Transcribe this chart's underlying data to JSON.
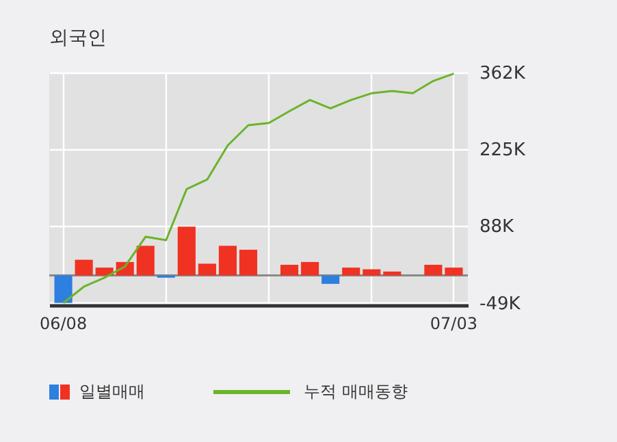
{
  "chart_data": {
    "type": "bar",
    "title": "외국인",
    "categories": [
      "06/08",
      null,
      null,
      null,
      null,
      null,
      null,
      null,
      null,
      null,
      null,
      null,
      null,
      null,
      null,
      null,
      null,
      null,
      null,
      "07/03"
    ],
    "series": [
      {
        "name": "일별매매",
        "colors": [
          "#2d7fe0",
          "#f03223",
          "#f03223",
          "#f03223",
          "#f03223",
          "#2d7fe0",
          "#f03223",
          "#f03223",
          "#f03223",
          "#f03223",
          "#f03223",
          "#f03223",
          "#f03223",
          "#2d7fe0",
          "#f03223",
          "#f03223",
          "#f03223",
          "#f03223",
          "#f03223",
          "#f03223"
        ],
        "values": [
          -49,
          28,
          14,
          24,
          53,
          -4,
          87,
          21,
          53,
          46,
          0,
          19,
          24,
          -15,
          14,
          11,
          7,
          0,
          19,
          14
        ]
      },
      {
        "type": "line",
        "name": "누적 매매동향",
        "color": "#6ab42a",
        "values": [
          -49,
          -20,
          -4,
          16,
          69,
          63,
          154,
          171,
          232,
          268,
          272,
          293,
          313,
          298,
          313,
          325,
          329,
          325,
          347,
          360
        ]
      }
    ],
    "ylim": [
      -53,
      362
    ],
    "yticks": [
      {
        "value": -49,
        "label": "-49K"
      },
      {
        "value": 88,
        "label": "88K"
      },
      {
        "value": 225,
        "label": "225K"
      },
      {
        "value": 362,
        "label": "362K"
      }
    ],
    "ref_lines": [
      {
        "axis": "y",
        "value": 0,
        "color": "#888888"
      }
    ],
    "grid": true,
    "legend": "bottom"
  }
}
